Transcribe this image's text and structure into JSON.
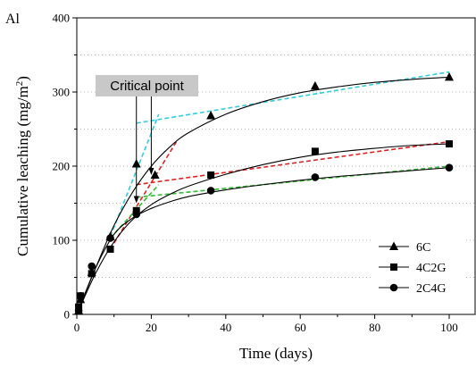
{
  "panel_label": "Al",
  "annotation": {
    "text": "Critical point",
    "points_to_x": [
      16,
      20
    ]
  },
  "colors": {
    "fit_line": "#000000",
    "tangent_6C": "#33ccdd",
    "tangent_4C2G": "#dd2222",
    "tangent_2C4G": "#33bb33",
    "callout_bg": "#c8c8c8",
    "grid": "#9a9a9a"
  },
  "chart_data": {
    "type": "scatter",
    "title": "",
    "xlabel": "Time (days)",
    "ylabel_prefix": "Cumulative leaching (mg/m",
    "ylabel_sup": "2",
    "ylabel_suffix": ")",
    "xlim": [
      0,
      110
    ],
    "ylim": [
      0,
      400
    ],
    "xticks": [
      0,
      20,
      40,
      60,
      80,
      100
    ],
    "yticks": [
      0,
      100,
      200,
      300,
      400
    ],
    "grid": "horizontal dotted",
    "legend_position": "bottom-right",
    "series": [
      {
        "name": "6C",
        "marker": "triangle",
        "x": [
          0.5,
          1,
          4,
          9,
          16,
          21,
          36,
          64,
          100
        ],
        "y": [
          5,
          20,
          57,
          105,
          203,
          188,
          268,
          308,
          320
        ],
        "fit": [
          [
            0,
            0
          ],
          [
            5,
            62
          ],
          [
            10,
            120
          ],
          [
            15,
            165
          ],
          [
            20,
            200
          ],
          [
            25,
            226
          ],
          [
            30,
            245
          ],
          [
            40,
            270
          ],
          [
            50,
            287
          ],
          [
            60,
            299
          ],
          [
            70,
            307
          ],
          [
            80,
            313
          ],
          [
            90,
            317
          ],
          [
            100,
            320
          ]
        ],
        "tangent_lines": [
          [
            [
              9,
              105
            ],
            [
              22,
              270
            ]
          ],
          [
            [
              16,
              258
            ],
            [
              100,
              327
            ]
          ]
        ]
      },
      {
        "name": "4C2G",
        "marker": "square",
        "x": [
          0.5,
          1,
          4,
          9,
          16,
          36,
          64,
          100
        ],
        "y": [
          10,
          25,
          55,
          88,
          140,
          188,
          220,
          230
        ],
        "fit": [
          [
            0,
            0
          ],
          [
            5,
            55
          ],
          [
            10,
            98
          ],
          [
            15,
            128
          ],
          [
            20,
            148
          ],
          [
            25,
            162
          ],
          [
            30,
            173
          ],
          [
            40,
            189
          ],
          [
            50,
            202
          ],
          [
            60,
            212
          ],
          [
            70,
            219
          ],
          [
            80,
            224
          ],
          [
            90,
            228
          ],
          [
            100,
            230
          ]
        ],
        "tangent_lines": [
          [
            [
              9,
              88
            ],
            [
              27,
              235
            ]
          ],
          [
            [
              16,
              175
            ],
            [
              100,
              233
            ]
          ]
        ]
      },
      {
        "name": "2C4G",
        "marker": "circle",
        "x": [
          0.5,
          1,
          4,
          9,
          16,
          36,
          64,
          100
        ],
        "y": [
          5,
          25,
          65,
          103,
          135,
          167,
          185,
          198
        ],
        "fit": [
          [
            0,
            0
          ],
          [
            5,
            62
          ],
          [
            10,
            108
          ],
          [
            15,
            130
          ],
          [
            20,
            143
          ],
          [
            25,
            152
          ],
          [
            30,
            159
          ],
          [
            40,
            168
          ],
          [
            50,
            175
          ],
          [
            60,
            181
          ],
          [
            70,
            186
          ],
          [
            80,
            190
          ],
          [
            90,
            194
          ],
          [
            100,
            198
          ]
        ],
        "tangent_lines": [
          [
            [
              9,
              103
            ],
            [
              22,
              175
            ]
          ],
          [
            [
              16,
              158
            ],
            [
              100,
              200
            ]
          ]
        ]
      }
    ]
  }
}
